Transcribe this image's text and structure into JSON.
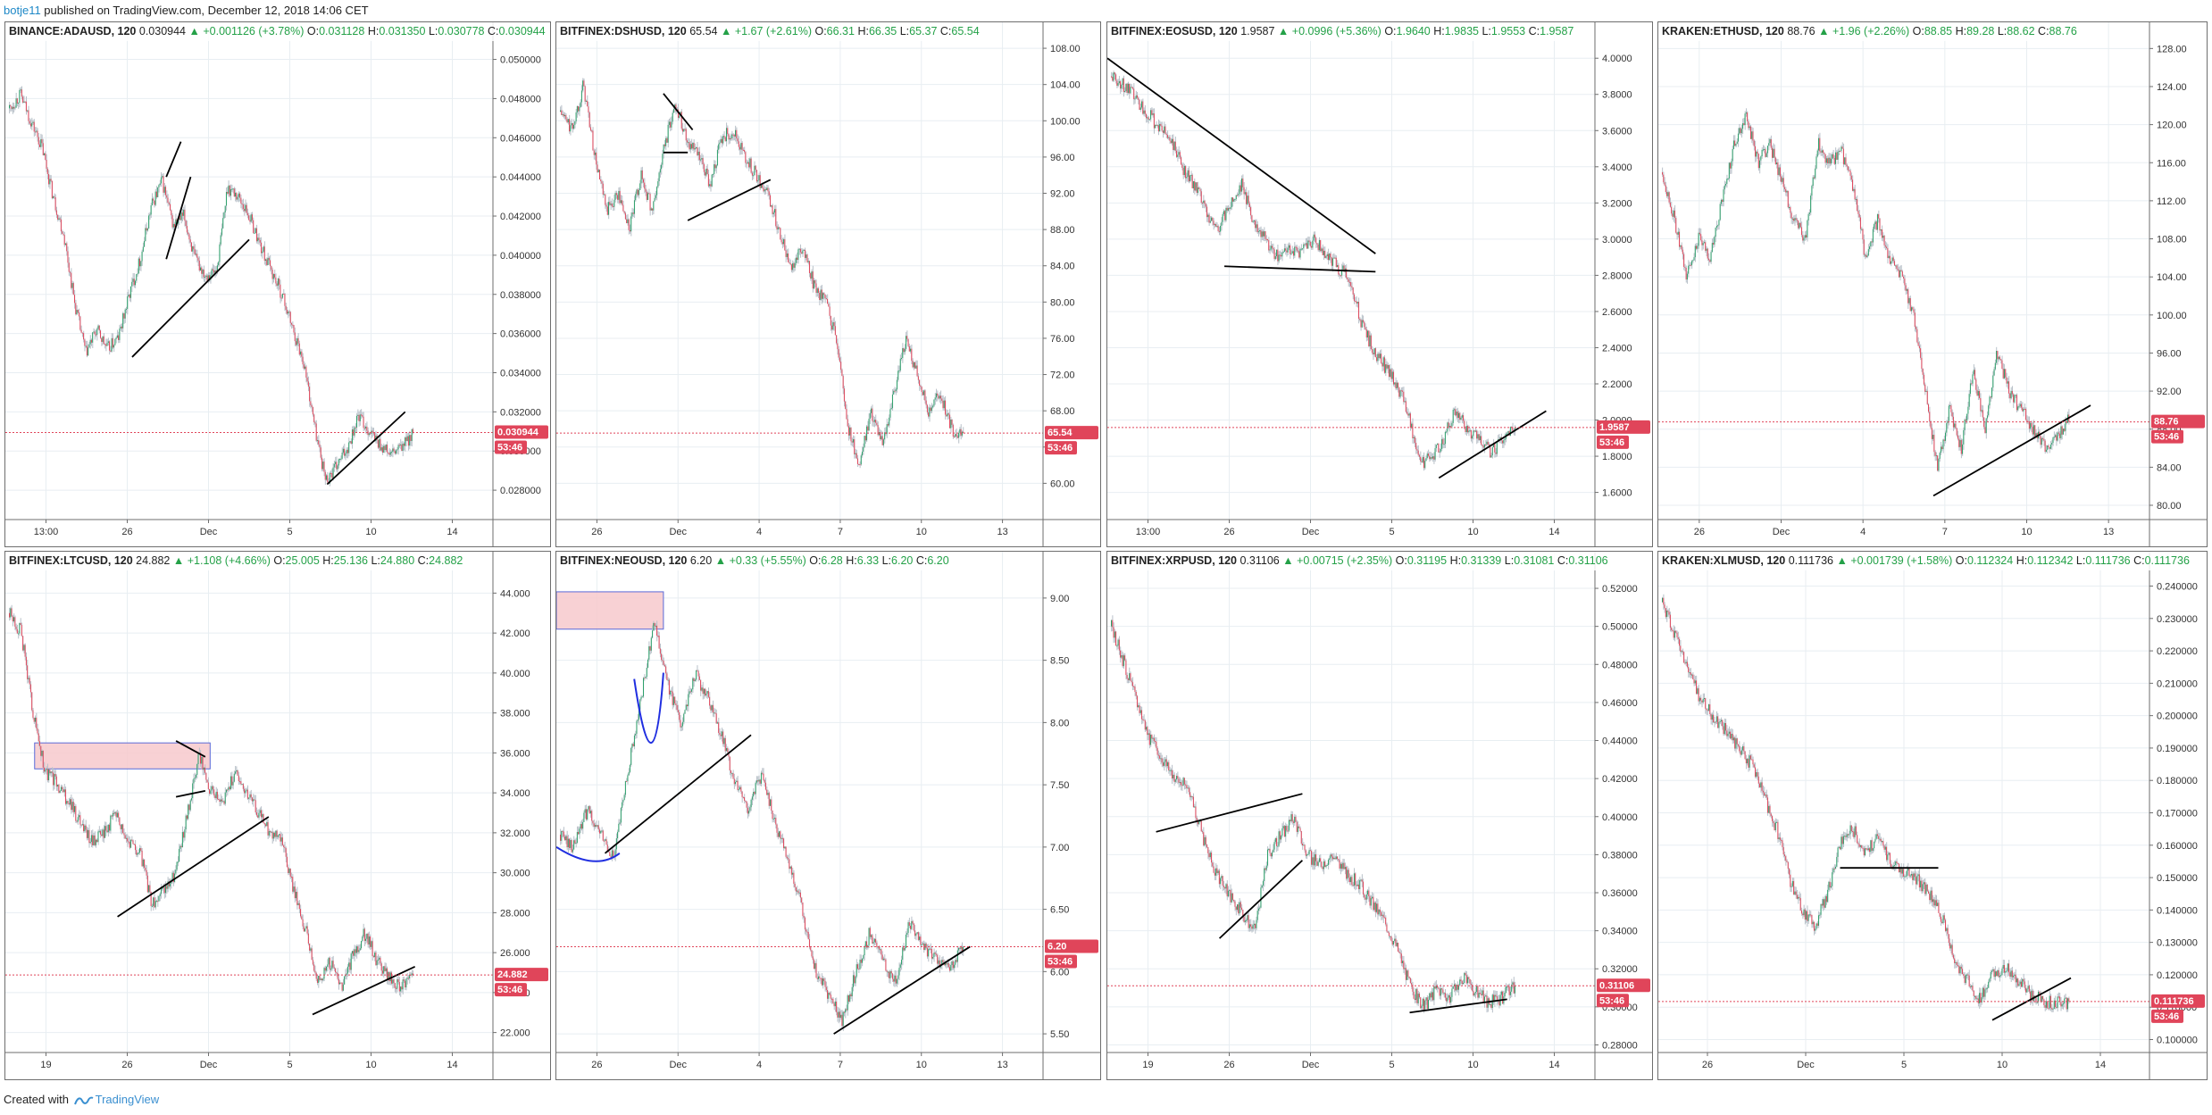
{
  "header": {
    "user": "botje11",
    "text": " published on TradingView.com, December 12, 2018 14:06 CET"
  },
  "footer": {
    "prefix": "Created with",
    "brand": "TradingView"
  },
  "colors": {
    "up": "#2ca06a",
    "down": "#e0455a",
    "wick": "#b8c0c8",
    "grid": "#e8eef2",
    "price_line": "#e0455a",
    "annotation": "#000000",
    "annotation_blue": "#1f2ee0",
    "zone_fill": "#f7c9cc",
    "zone_border": "#5a6ad8"
  },
  "countdown": "53:46",
  "panels": [
    {
      "symbol": "BINANCE:ADAUSD, 120",
      "last": "0.030944",
      "change": "+0.001126 (+3.78%)",
      "o": "0.031128",
      "h": "0.031350",
      "l": "0.030778",
      "c": "0.030944",
      "price_tag": "0.030944",
      "chart_data": {
        "type": "candlestick",
        "ylim": [
          0.0265,
          0.0508
        ],
        "y_ticks": [
          "0.050000",
          "0.048000",
          "0.046000",
          "0.044000",
          "0.042000",
          "0.040000",
          "0.038000",
          "0.036000",
          "0.034000",
          "0.032000",
          "0.030000",
          "0.028000"
        ],
        "y_tick_values": [
          0.05,
          0.048,
          0.046,
          0.044,
          0.042,
          0.04,
          0.038,
          0.036,
          0.034,
          0.032,
          0.03,
          0.028
        ],
        "x_ticks": [
          "13:00",
          "26",
          "Dec",
          "5",
          "10",
          "14"
        ],
        "path": [
          0.0475,
          0.0482,
          0.0468,
          0.0455,
          0.043,
          0.041,
          0.0375,
          0.035,
          0.0362,
          0.0352,
          0.0358,
          0.038,
          0.0398,
          0.0425,
          0.0438,
          0.0415,
          0.042,
          0.0398,
          0.039,
          0.0392,
          0.0435,
          0.043,
          0.042,
          0.0405,
          0.0392,
          0.038,
          0.0362,
          0.0345,
          0.0312,
          0.0285,
          0.0292,
          0.0302,
          0.0318,
          0.031,
          0.0303,
          0.0298,
          0.0302,
          0.0309
        ],
        "last_value": 0.030944,
        "trendlines": [
          [
            0.26,
            0.0348,
            0.5,
            0.0408
          ],
          [
            0.33,
            0.044,
            0.36,
            0.0458
          ],
          [
            0.33,
            0.0398,
            0.38,
            0.044
          ],
          [
            0.66,
            0.0283,
            0.82,
            0.032
          ]
        ]
      }
    },
    {
      "symbol": "BITFINEX:DSHUSD, 120",
      "last": "65.54",
      "change": "+1.67 (+2.61%)",
      "o": "66.31",
      "h": "66.35",
      "l": "65.37",
      "c": "65.54",
      "price_tag": "65.54",
      "chart_data": {
        "type": "candlestick",
        "ylim": [
          56,
          108.5
        ],
        "y_ticks": [
          "108.00",
          "104.00",
          "100.00",
          "96.00",
          "92.00",
          "88.00",
          "84.00",
          "80.00",
          "76.00",
          "72.00",
          "68.00",
          "64.00",
          "60.00"
        ],
        "y_tick_values": [
          108,
          104,
          100,
          96,
          92,
          88,
          84,
          80,
          76,
          72,
          68,
          64,
          60
        ],
        "x_ticks": [
          "26",
          "Dec",
          "4",
          "7",
          "10",
          "13"
        ],
        "path": [
          101,
          99,
          104,
          96,
          90,
          92,
          88,
          94,
          90,
          97,
          102,
          98,
          96,
          93,
          98,
          99,
          96,
          94,
          92,
          88,
          84,
          86,
          82,
          80,
          76,
          66,
          62,
          68,
          64,
          70,
          76,
          72,
          68,
          70,
          66,
          65.5
        ],
        "last_value": 65.54,
        "trendlines": [
          [
            0.22,
            103,
            0.28,
            99
          ],
          [
            0.22,
            96.5,
            0.27,
            96.5
          ],
          [
            0.27,
            89,
            0.44,
            93.5
          ]
        ]
      }
    },
    {
      "symbol": "BITFINEX:EOSUSD, 120",
      "last": "1.9587",
      "change": "+0.0996 (+5.36%)",
      "o": "1.9640",
      "h": "1.9835",
      "l": "1.9553",
      "c": "1.9587",
      "price_tag": "1.9587",
      "chart_data": {
        "type": "candlestick",
        "ylim": [
          1.45,
          4.08
        ],
        "y_ticks": [
          "4.0000",
          "3.8000",
          "3.6000",
          "3.4000",
          "3.2000",
          "3.0000",
          "2.8000",
          "2.6000",
          "2.4000",
          "2.2000",
          "2.0000",
          "1.8000",
          "1.6000"
        ],
        "y_tick_values": [
          4,
          3.8,
          3.6,
          3.4,
          3.2,
          3.0,
          2.8,
          2.6,
          2.4,
          2.2,
          2.0,
          1.8,
          1.6
        ],
        "x_ticks": [
          "13:00",
          "26",
          "Dec",
          "5",
          "10",
          "14"
        ],
        "path": [
          3.9,
          3.85,
          3.78,
          3.7,
          3.62,
          3.55,
          3.4,
          3.3,
          3.15,
          3.05,
          3.2,
          3.3,
          3.1,
          3.0,
          2.9,
          2.95,
          2.92,
          3.0,
          2.92,
          2.85,
          2.8,
          2.55,
          2.4,
          2.3,
          2.2,
          2.05,
          1.75,
          1.8,
          1.9,
          2.05,
          1.95,
          1.88,
          1.82,
          1.9,
          1.96
        ],
        "last_value": 1.9587,
        "trendlines": [
          [
            0.0,
            4.0,
            0.55,
            2.92
          ],
          [
            0.24,
            2.85,
            0.55,
            2.82
          ],
          [
            0.68,
            1.68,
            0.9,
            2.05
          ]
        ]
      }
    },
    {
      "symbol": "KRAKEN:ETHUSD, 120",
      "last": "88.76",
      "change": "+1.96 (+2.26%)",
      "o": "88.85",
      "h": "89.28",
      "l": "88.62",
      "c": "88.76",
      "price_tag": "88.76",
      "chart_data": {
        "type": "candlestick",
        "ylim": [
          78.5,
          128.5
        ],
        "y_ticks": [
          "128.00",
          "124.00",
          "120.00",
          "116.00",
          "112.00",
          "108.00",
          "104.00",
          "100.00",
          "96.00",
          "92.00",
          "88.00",
          "84.00",
          "80.00"
        ],
        "y_tick_values": [
          128,
          124,
          120,
          116,
          112,
          108,
          104,
          100,
          96,
          92,
          88,
          84,
          80
        ],
        "x_ticks": [
          "26",
          "Dec",
          "4",
          "7",
          "10",
          "13"
        ],
        "path": [
          115,
          110,
          104,
          108,
          106,
          112,
          118,
          121,
          116,
          118,
          114,
          110,
          108,
          118,
          116,
          117,
          113,
          106,
          110,
          106,
          104,
          100,
          92,
          84,
          90,
          86,
          94,
          88,
          96,
          92,
          90,
          88,
          86,
          87,
          89
        ],
        "last_value": 88.76,
        "trendlines": [
          [
            0.56,
            81,
            0.88,
            90.5
          ]
        ]
      }
    },
    {
      "symbol": "BITFINEX:LTCUSD, 120",
      "last": "24.882",
      "change": "+1.108 (+4.66%)",
      "o": "25.005",
      "h": "25.136",
      "l": "24.880",
      "c": "24.882",
      "price_tag": "24.882",
      "chart_data": {
        "type": "candlestick",
        "ylim": [
          21.0,
          45.0
        ],
        "y_ticks": [
          "44.000",
          "42.000",
          "40.000",
          "38.000",
          "36.000",
          "34.000",
          "32.000",
          "30.000",
          "28.000",
          "26.000",
          "24.000",
          "22.000"
        ],
        "y_tick_values": [
          44,
          42,
          40,
          38,
          36,
          34,
          32,
          30,
          28,
          26,
          24,
          22
        ],
        "x_ticks": [
          "19",
          "26",
          "Dec",
          "5",
          "10",
          "14"
        ],
        "path": [
          43,
          42,
          38,
          35,
          34.5,
          33.5,
          32.5,
          31.5,
          32,
          33,
          31.5,
          31,
          28.5,
          29,
          30,
          33,
          36,
          34,
          33.5,
          35,
          34,
          33,
          32,
          31.5,
          29,
          27,
          24.5,
          25.5,
          24.2,
          26,
          27,
          25.5,
          24.8,
          24.2,
          24.9
        ],
        "last_value": 24.882,
        "zone": [
          0.06,
          36.5,
          0.42,
          35.2
        ],
        "trendlines": [
          [
            0.23,
            27.8,
            0.54,
            32.8
          ],
          [
            0.35,
            36.6,
            0.41,
            35.8
          ],
          [
            0.35,
            33.8,
            0.41,
            34.1
          ],
          [
            0.63,
            22.9,
            0.84,
            25.3
          ]
        ]
      }
    },
    {
      "symbol": "BITFINEX:NEOUSD, 120",
      "last": "6.20",
      "change": "+0.33 (+5.55%)",
      "o": "6.28",
      "h": "6.33",
      "l": "6.20",
      "c": "6.20",
      "price_tag": "6.20",
      "chart_data": {
        "type": "candlestick",
        "ylim": [
          5.35,
          9.2
        ],
        "y_ticks": [
          "9.00",
          "8.50",
          "8.00",
          "7.50",
          "7.00",
          "6.50",
          "6.00",
          "5.50"
        ],
        "y_tick_values": [
          9.0,
          8.5,
          8.0,
          7.5,
          7.0,
          6.5,
          6.0,
          5.5
        ],
        "x_ticks": [
          "26",
          "Dec",
          "4",
          "7",
          "10",
          "13"
        ],
        "path": [
          7.1,
          7.0,
          7.3,
          7.1,
          6.9,
          7.6,
          8.2,
          8.8,
          8.3,
          8.0,
          8.4,
          8.2,
          7.9,
          7.5,
          7.3,
          7.6,
          7.2,
          6.9,
          6.5,
          6.0,
          5.8,
          5.6,
          6.0,
          6.3,
          6.1,
          5.9,
          6.4,
          6.2,
          6.1,
          6.0,
          6.2
        ],
        "last_value": 6.2,
        "zone": [
          0.0,
          9.05,
          0.22,
          8.75
        ],
        "curves": [
          [
            "M",
            0.0,
            7.0,
            "Q",
            0.08,
            6.8,
            0.13,
            6.95
          ],
          [
            "M",
            0.16,
            8.35,
            "Q",
            0.2,
            7.3,
            0.22,
            8.4
          ]
        ],
        "trendlines": [
          [
            0.1,
            6.95,
            0.4,
            7.9
          ],
          [
            0.57,
            5.5,
            0.85,
            6.2
          ]
        ]
      }
    },
    {
      "symbol": "BITFINEX:XRPUSD, 120",
      "last": "0.31106",
      "change": "+0.00715 (+2.35%)",
      "o": "0.31195",
      "h": "0.31339",
      "l": "0.31081",
      "c": "0.31106",
      "price_tag": "0.31106",
      "chart_data": {
        "type": "candlestick",
        "ylim": [
          0.276,
          0.528
        ],
        "y_ticks": [
          "0.52000",
          "0.50000",
          "0.48000",
          "0.46000",
          "0.44000",
          "0.42000",
          "0.40000",
          "0.38000",
          "0.36000",
          "0.34000",
          "0.32000",
          "0.30000",
          "0.28000"
        ],
        "y_tick_values": [
          0.52,
          0.5,
          0.48,
          0.46,
          0.44,
          0.42,
          0.4,
          0.38,
          0.36,
          0.34,
          0.32,
          0.3,
          0.28
        ],
        "x_ticks": [
          "19",
          "26",
          "Dec",
          "5",
          "10",
          "14"
        ],
        "path": [
          0.5,
          0.48,
          0.46,
          0.44,
          0.43,
          0.42,
          0.415,
          0.39,
          0.37,
          0.36,
          0.35,
          0.34,
          0.38,
          0.39,
          0.4,
          0.38,
          0.375,
          0.38,
          0.37,
          0.365,
          0.355,
          0.345,
          0.33,
          0.31,
          0.3,
          0.31,
          0.305,
          0.315,
          0.308,
          0.302,
          0.305,
          0.311
        ],
        "last_value": 0.31106,
        "trendlines": [
          [
            0.1,
            0.392,
            0.4,
            0.412
          ],
          [
            0.23,
            0.336,
            0.4,
            0.377
          ],
          [
            0.62,
            0.297,
            0.82,
            0.304
          ]
        ]
      }
    },
    {
      "symbol": "KRAKEN:XLMUSD, 120",
      "last": "0.111736",
      "change": "+0.001739 (+1.58%)",
      "o": "0.112324",
      "h": "0.112342",
      "l": "0.111736",
      "c": "0.111736",
      "price_tag": "0.111736",
      "chart_data": {
        "type": "candlestick",
        "ylim": [
          0.096,
          0.244
        ],
        "y_ticks": [
          "0.240000",
          "0.230000",
          "0.220000",
          "0.210000",
          "0.200000",
          "0.190000",
          "0.180000",
          "0.170000",
          "0.160000",
          "0.150000",
          "0.140000",
          "0.130000",
          "0.120000",
          "0.110000",
          "0.100000"
        ],
        "y_tick_values": [
          0.24,
          0.23,
          0.22,
          0.21,
          0.2,
          0.19,
          0.18,
          0.17,
          0.16,
          0.15,
          0.14,
          0.13,
          0.12,
          0.11,
          0.1
        ],
        "x_ticks": [
          "26",
          "Dec",
          "5",
          "10",
          "14"
        ],
        "path": [
          0.235,
          0.225,
          0.215,
          0.205,
          0.2,
          0.195,
          0.19,
          0.185,
          0.175,
          0.165,
          0.15,
          0.14,
          0.135,
          0.145,
          0.16,
          0.165,
          0.158,
          0.162,
          0.155,
          0.152,
          0.15,
          0.145,
          0.138,
          0.125,
          0.118,
          0.112,
          0.12,
          0.122,
          0.118,
          0.114,
          0.112,
          0.111,
          0.1117
        ],
        "last_value": 0.111736,
        "trendlines": [
          [
            0.37,
            0.153,
            0.57,
            0.153
          ],
          [
            0.68,
            0.106,
            0.84,
            0.119
          ]
        ]
      }
    }
  ]
}
